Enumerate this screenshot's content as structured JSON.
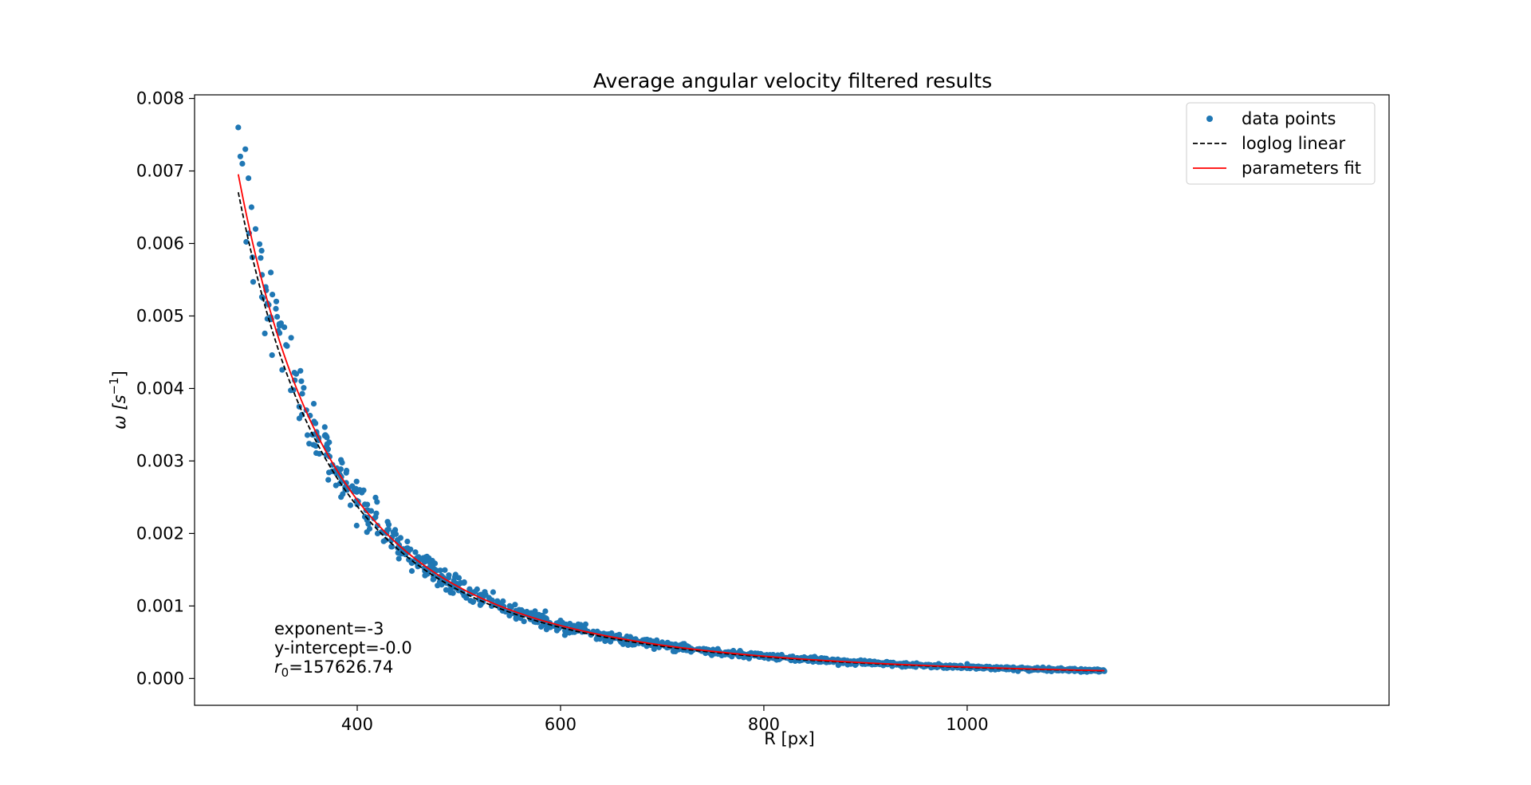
{
  "chart_data": {
    "type": "scatter",
    "title": "Average angular velocity filtered results",
    "xlabel": "R [px]",
    "ylabel": "ω [s⁻¹]",
    "ylabel_base": "ω [",
    "ylabel_unit": "s",
    "ylabel_exp": "−1",
    "ylabel_close": "]",
    "xlim": [
      240,
      1415
    ],
    "ylim": [
      -0.00037,
      0.00805
    ],
    "x_ticks": [
      400,
      600,
      800,
      1000
    ],
    "x_tick_labels": [
      "400",
      "600",
      "800",
      "1000"
    ],
    "y_ticks": [
      0.0,
      0.001,
      0.002,
      0.003,
      0.004,
      0.005,
      0.006,
      0.007,
      0.008
    ],
    "y_tick_labels": [
      "0.000",
      "0.001",
      "0.002",
      "0.003",
      "0.004",
      "0.005",
      "0.006",
      "0.007",
      "0.008"
    ],
    "grid": false,
    "legend_position": "top-right",
    "series": [
      {
        "name": "data points",
        "kind": "scatter",
        "color": "#1f77b4",
        "model": {
          "r0": 157626.74,
          "exponent": -3,
          "x_start": 283,
          "x_end": 1135,
          "count": 1300,
          "relative_noise": 0.08
        },
        "x": [
          283,
          285,
          287,
          290,
          293,
          296,
          300,
          305,
          310,
          315,
          320,
          325,
          330,
          335,
          340,
          345,
          350,
          360,
          370,
          380,
          390,
          400,
          410,
          420,
          440,
          460,
          480,
          500,
          520,
          550,
          580,
          600,
          650,
          700,
          750,
          800,
          850,
          900,
          950,
          1000,
          1050,
          1100,
          1135
        ],
        "y": [
          0.0076,
          0.0072,
          0.0071,
          0.0073,
          0.0069,
          0.0065,
          0.0062,
          0.0058,
          0.0054,
          0.0056,
          0.0051,
          0.0049,
          0.0046,
          0.0047,
          0.0042,
          0.0041,
          0.0037,
          0.0034,
          0.0032,
          0.0029,
          0.0026,
          0.0024,
          0.0022,
          0.002,
          0.0018,
          0.0016,
          0.0014,
          0.0013,
          0.0011,
          0.001,
          0.0008,
          0.0008,
          0.0006,
          0.0005,
          0.0004,
          0.0003,
          0.0003,
          0.0002,
          0.0002,
          0.0002,
          0.0001,
          0.0001,
          0.0001
        ]
      },
      {
        "name": "loglog linear",
        "kind": "line",
        "color": "#000000",
        "dash": "dashed",
        "model": {
          "r0": 157626.74,
          "exponent": -3,
          "coef": 152000,
          "x_start": 283,
          "x_end": 1135
        }
      },
      {
        "name": "parameters fit",
        "kind": "line",
        "color": "#ff0000",
        "dash": "solid",
        "model": {
          "r0": 157626.74,
          "exponent": -3,
          "x_start": 283,
          "x_end": 1135
        }
      }
    ],
    "annotations": [
      {
        "text": "exponent=-3"
      },
      {
        "text": "y-intercept=-0.0"
      },
      {
        "text_prefix": "r",
        "text_sub": "0",
        "text_suffix": "=157626.74"
      }
    ]
  }
}
